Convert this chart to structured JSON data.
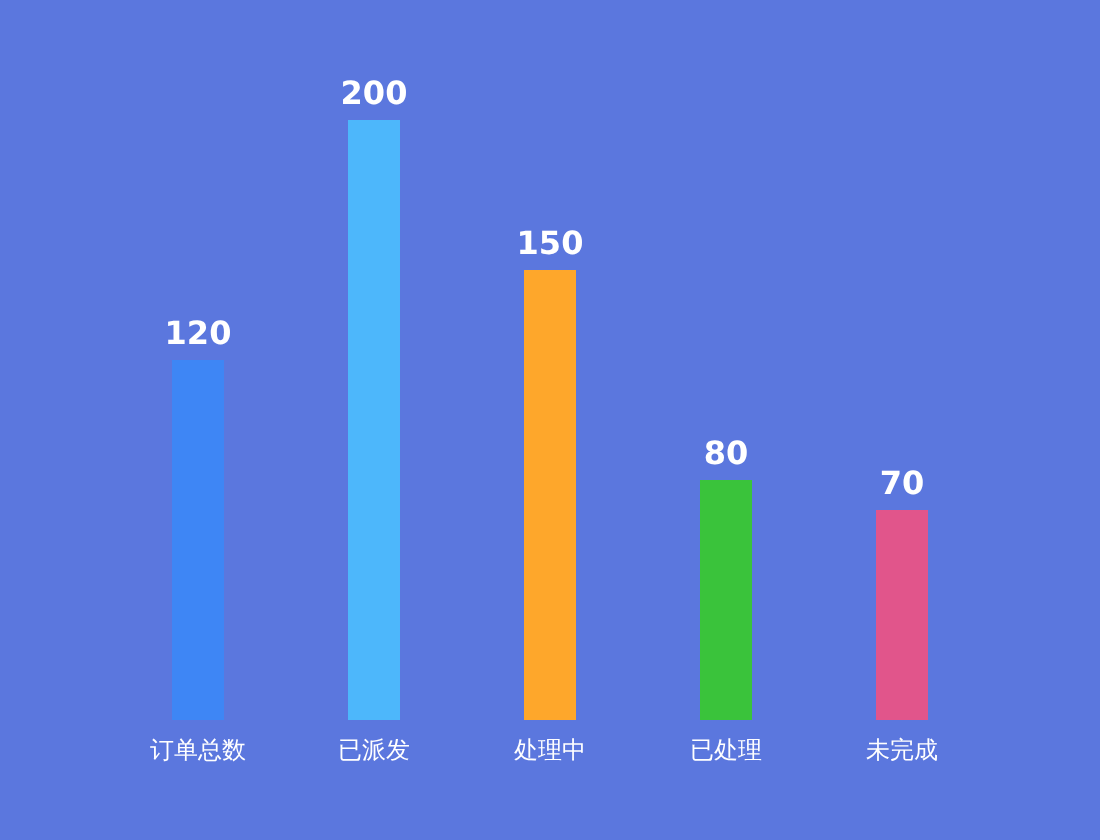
{
  "chart_data": {
    "type": "bar",
    "categories": [
      "订单总数",
      "已派发",
      "处理中",
      "已处理",
      "未完成"
    ],
    "values": [
      120,
      200,
      150,
      80,
      70
    ],
    "colors": [
      "#3e86f5",
      "#4db7fb",
      "#fea72b",
      "#3ac33b",
      "#e1558b"
    ],
    "data_labels": true
  }
}
